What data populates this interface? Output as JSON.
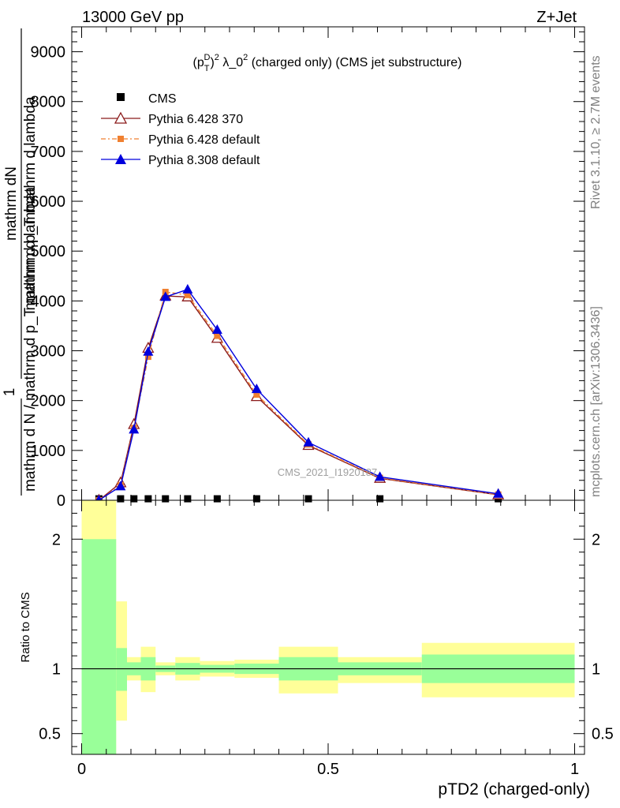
{
  "header": {
    "left": "13000 GeV pp",
    "right": "Z+Jet"
  },
  "side_text": {
    "rivet": "Rivet 3.1.10, ≥ 2.7M events",
    "mcplots": "mcplots.cern.ch [arXiv:1306.3436]"
  },
  "watermark": "CMS_2021_I1920187",
  "main_ylabel_top": "mathrm dN",
  "main_ylabel_mid": "mathrm d p_T mathrm d lambda",
  "main_ylabel_frac_num": "1",
  "main_ylabel_bottom": "mathrm d N / mathrm d p_T mathrm d lambda",
  "ratio_ylabel": "Ratio to CMS",
  "xlabel": "pTD2 (charged-only)",
  "chart_data": {
    "type": "line",
    "title": "(p_T^D)^2 λ_0^2 (charged only) (CMS jet substructure)",
    "title_parts": {
      "open": "(p",
      "sup1": "D",
      "sub1": "T",
      "close": ")",
      "sup2": "2",
      "lam": " λ_0",
      "sup3": "2",
      "rest": " (charged only) (CMS jet substructure)"
    },
    "xlim": [
      -0.02,
      1.02
    ],
    "ylim": [
      0,
      9500
    ],
    "yticks": [
      0,
      1000,
      2000,
      3000,
      4000,
      5000,
      6000,
      7000,
      8000,
      9000
    ],
    "ytick_labels": [
      "0",
      "1000",
      "2000",
      "3000",
      "4000",
      "5000",
      "6000",
      "7000",
      "8000",
      "9000"
    ],
    "xticks": [
      0,
      0.5,
      1
    ],
    "xtick_labels": [
      "0",
      "0.5",
      "1"
    ],
    "ratio_ylim": [
      0.34,
      2.3
    ],
    "ratio_yticks": [
      0.5,
      1,
      2
    ],
    "ratio_ytick_labels": [
      "0.5",
      "1",
      "2"
    ],
    "legend_position": "top-left",
    "series": [
      {
        "name": "CMS",
        "marker": "square",
        "color": "#000000",
        "x": [
          0.035,
          0.079,
          0.106,
          0.135,
          0.17,
          0.215,
          0.275,
          0.355,
          0.46,
          0.605,
          0.845
        ],
        "y": [
          30,
          30,
          30,
          30,
          30,
          30,
          30,
          30,
          30,
          30,
          30
        ]
      },
      {
        "name": "Pythia 6.428 370",
        "marker": "open-triangle",
        "color": "#8b1a1a",
        "x": [
          0.035,
          0.079,
          0.106,
          0.135,
          0.17,
          0.215,
          0.275,
          0.355,
          0.46,
          0.605,
          0.845
        ],
        "y": [
          0,
          350,
          1520,
          3050,
          4100,
          4080,
          3250,
          2080,
          1100,
          440,
          110
        ]
      },
      {
        "name": "Pythia 6.428 default",
        "marker": "filled-square",
        "color": "#f08030",
        "x": [
          0.035,
          0.079,
          0.106,
          0.135,
          0.17,
          0.215,
          0.275,
          0.355,
          0.46,
          0.605,
          0.845
        ],
        "y": [
          0,
          300,
          1450,
          2880,
          4180,
          4120,
          3300,
          2120,
          1120,
          450,
          115
        ]
      },
      {
        "name": "Pythia 8.308 default",
        "marker": "filled-triangle",
        "color": "#0000dd",
        "x": [
          0.035,
          0.079,
          0.106,
          0.135,
          0.17,
          0.215,
          0.275,
          0.355,
          0.46,
          0.605,
          0.845
        ],
        "y": [
          0,
          280,
          1420,
          2980,
          4080,
          4230,
          3420,
          2230,
          1160,
          470,
          130
        ]
      }
    ],
    "ratio_bands": [
      {
        "x0": 0.0,
        "x1": 0.07,
        "in_lo": 0.34,
        "in_hi": 2.0,
        "out_lo": 0.34,
        "out_hi": 2.3
      },
      {
        "x0": 0.07,
        "x1": 0.092,
        "in_lo": 0.83,
        "in_hi": 1.16,
        "out_lo": 0.6,
        "out_hi": 1.52
      },
      {
        "x0": 0.092,
        "x1": 0.12,
        "in_lo": 0.95,
        "in_hi": 1.05,
        "out_lo": 0.91,
        "out_hi": 1.09
      },
      {
        "x0": 0.12,
        "x1": 0.15,
        "in_lo": 0.91,
        "in_hi": 1.09,
        "out_lo": 0.82,
        "out_hi": 1.17
      },
      {
        "x0": 0.15,
        "x1": 0.19,
        "in_lo": 0.975,
        "in_hi": 1.025,
        "out_lo": 0.95,
        "out_hi": 1.05
      },
      {
        "x0": 0.19,
        "x1": 0.24,
        "in_lo": 0.955,
        "in_hi": 1.045,
        "out_lo": 0.91,
        "out_hi": 1.09
      },
      {
        "x0": 0.24,
        "x1": 0.31,
        "in_lo": 0.97,
        "in_hi": 1.03,
        "out_lo": 0.94,
        "out_hi": 1.06
      },
      {
        "x0": 0.31,
        "x1": 0.4,
        "in_lo": 0.96,
        "in_hi": 1.04,
        "out_lo": 0.93,
        "out_hi": 1.07
      },
      {
        "x0": 0.4,
        "x1": 0.52,
        "in_lo": 0.91,
        "in_hi": 1.09,
        "out_lo": 0.81,
        "out_hi": 1.17
      },
      {
        "x0": 0.52,
        "x1": 0.69,
        "in_lo": 0.95,
        "in_hi": 1.05,
        "out_lo": 0.89,
        "out_hi": 1.09
      },
      {
        "x0": 0.69,
        "x1": 1.0,
        "in_lo": 0.89,
        "in_hi": 1.11,
        "out_lo": 0.78,
        "out_hi": 1.2
      }
    ],
    "colors": {
      "band_inner": "#99ff99",
      "band_outer": "#ffff99",
      "watermark": "#a0a0a0"
    }
  }
}
